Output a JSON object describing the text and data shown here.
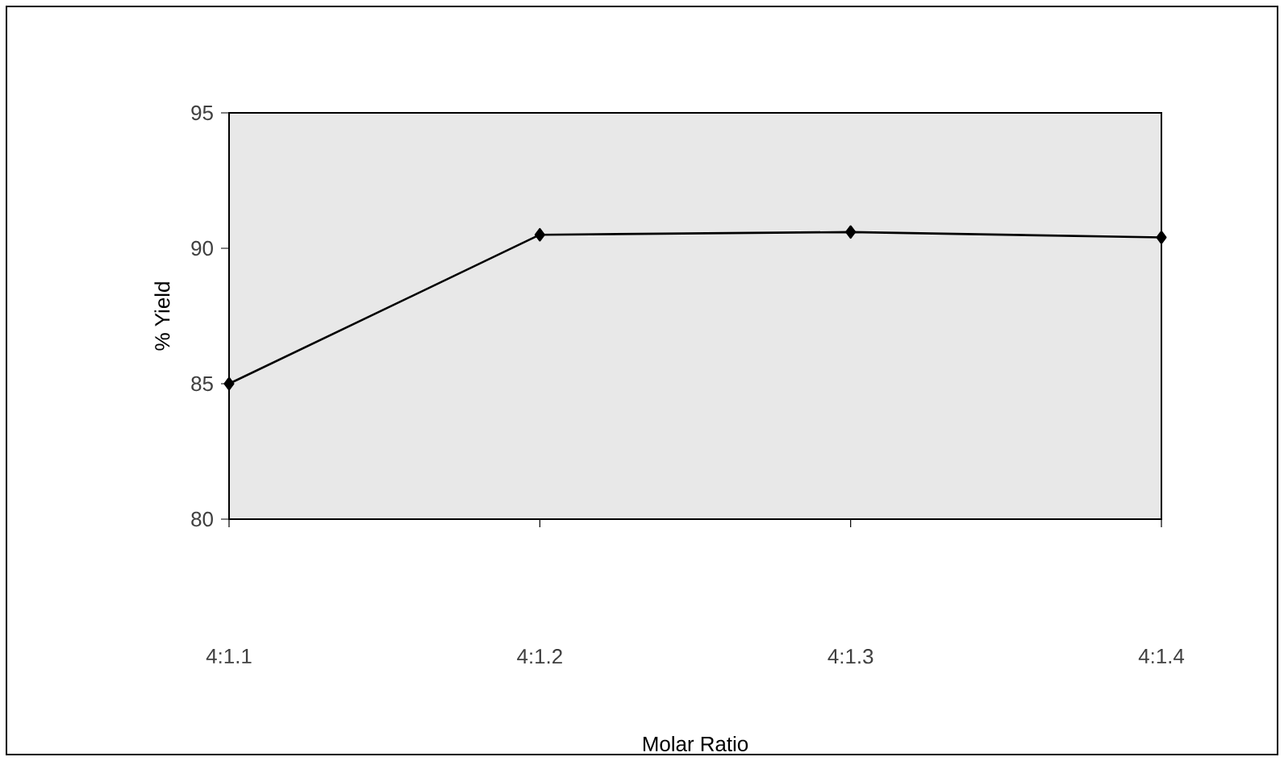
{
  "chart_data": {
    "type": "line",
    "xlabel": "Molar Ratio",
    "ylabel": "% Yield",
    "categories": [
      "4:1.1",
      "4:1.2",
      "4:1.3",
      "4:1.4"
    ],
    "series": [
      {
        "color": "#000000",
        "values": [
          85,
          90.5,
          90.6,
          90.4
        ]
      }
    ],
    "ylim": [
      80,
      95
    ],
    "yticks": [
      80,
      85,
      90,
      95
    ],
    "grid": false,
    "marker": "diamond",
    "line_style": "solid"
  }
}
